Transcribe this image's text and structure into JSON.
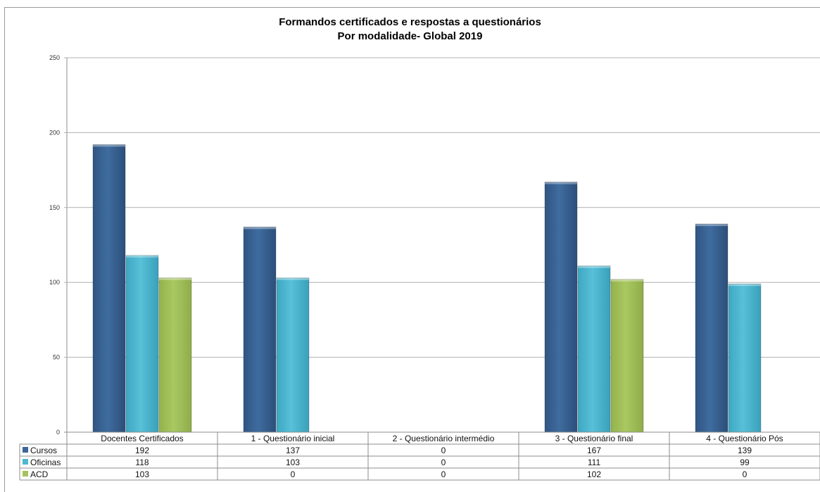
{
  "chart_data": {
    "type": "bar",
    "title": "Formandos certificados e respostas a questionários",
    "subtitle": "Por modalidade- Global 2019",
    "categories": [
      "Docentes Certificados",
      "1 - Questionário inicial",
      "2 - Questionário intermédio",
      "3 - Questionário final",
      "4 - Questionário Pós"
    ],
    "series": [
      {
        "name": "Cursos",
        "values": [
          192,
          137,
          0,
          167,
          139
        ],
        "color": "#3B6698"
      },
      {
        "name": "Oficinas",
        "values": [
          118,
          103,
          0,
          111,
          99
        ],
        "color": "#4FB8D1"
      },
      {
        "name": "ACD",
        "values": [
          103,
          0,
          0,
          102,
          0
        ],
        "color": "#A5C25C"
      }
    ],
    "ylim": [
      0,
      250
    ],
    "yticks": [
      0,
      50,
      100,
      150,
      200,
      250
    ],
    "grid": true,
    "legend": "data-table"
  }
}
